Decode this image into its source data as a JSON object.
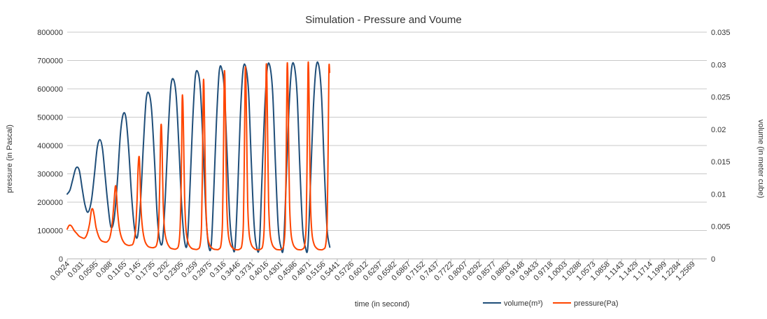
{
  "chart_data": {
    "type": "line",
    "title": "Simulation - Pressure and Voume",
    "xlabel": "time (in second)",
    "ylabel_left": "pressure (in Pascal)",
    "ylabel_right": "volume (in meter cube)",
    "x_range": [
      0.0024,
      1.2854
    ],
    "x_ticks": [
      "0.0024",
      "0.031",
      "0.0595",
      "0.088",
      "0.1165",
      "0.145",
      "0.1735",
      "0.202",
      "0.2305",
      "0.259",
      "0.2875",
      "0.316",
      "0.3446",
      "0.3731",
      "0.4016",
      "0.4301",
      "0.4586",
      "0.4871",
      "0.5156",
      "0.5441",
      "0.5726",
      "0.6012",
      "0.6297",
      "0.6582",
      "0.6867",
      "0.7152",
      "0.7437",
      "0.7722",
      "0.8007",
      "0.8292",
      "0.8577",
      "0.8863",
      "0.9148",
      "0.9433",
      "0.9718",
      "1.0003",
      "1.0288",
      "1.0573",
      "1.0858",
      "1.1143",
      "1.1429",
      "1.1714",
      "1.1999",
      "1.2284",
      "1.2569"
    ],
    "y_left": {
      "min": 0,
      "max": 800000,
      "step": 100000,
      "ticks": [
        "0",
        "100000",
        "200000",
        "300000",
        "400000",
        "500000",
        "600000",
        "700000",
        "800000"
      ]
    },
    "y_right": {
      "min": 0,
      "max": 0.035,
      "step": 0.005,
      "ticks": [
        "0",
        "0.005",
        "0.01",
        "0.015",
        "0.02",
        "0.025",
        "0.03",
        "0.035"
      ]
    },
    "grid": true,
    "legend_position": "bottom-right",
    "series": [
      {
        "name": "volume(m³)",
        "axis": "right",
        "color": "#1f4e79",
        "points": [
          [
            0.0024,
            0.01
          ],
          [
            0.0079,
            0.0106
          ],
          [
            0.0131,
            0.0121
          ],
          [
            0.0199,
            0.014
          ],
          [
            0.0265,
            0.0137
          ],
          [
            0.0326,
            0.0108
          ],
          [
            0.0382,
            0.0083
          ],
          [
            0.0442,
            0.0072
          ],
          [
            0.051,
            0.009
          ],
          [
            0.057,
            0.013
          ],
          [
            0.0627,
            0.0172
          ],
          [
            0.0682,
            0.0184
          ],
          [
            0.0732,
            0.017
          ],
          [
            0.0782,
            0.0131
          ],
          [
            0.0838,
            0.0086
          ],
          [
            0.0902,
            0.0049
          ],
          [
            0.0968,
            0.0063
          ],
          [
            0.1031,
            0.012
          ],
          [
            0.1091,
            0.0192
          ],
          [
            0.1146,
            0.0223
          ],
          [
            0.1202,
            0.0218
          ],
          [
            0.1257,
            0.017
          ],
          [
            0.1317,
            0.0096
          ],
          [
            0.1377,
            0.0045
          ],
          [
            0.1437,
            0.0035
          ],
          [
            0.1497,
            0.009
          ],
          [
            0.1552,
            0.0175
          ],
          [
            0.1607,
            0.0245
          ],
          [
            0.1662,
            0.0256
          ],
          [
            0.1717,
            0.023
          ],
          [
            0.1777,
            0.015
          ],
          [
            0.1827,
            0.007
          ],
          [
            0.1877,
            0.003
          ],
          [
            0.1937,
            0.0027
          ],
          [
            0.1992,
            0.0095
          ],
          [
            0.2047,
            0.019
          ],
          [
            0.2102,
            0.0265
          ],
          [
            0.2157,
            0.0277
          ],
          [
            0.2212,
            0.025
          ],
          [
            0.2267,
            0.017
          ],
          [
            0.2322,
            0.008
          ],
          [
            0.2377,
            0.0028
          ],
          [
            0.2432,
            0.0024
          ],
          [
            0.2482,
            0.01
          ],
          [
            0.2537,
            0.0205
          ],
          [
            0.2592,
            0.028
          ],
          [
            0.2647,
            0.0288
          ],
          [
            0.2697,
            0.026
          ],
          [
            0.2752,
            0.017
          ],
          [
            0.2807,
            0.007
          ],
          [
            0.2857,
            0.0022
          ],
          [
            0.2912,
            0.002
          ],
          [
            0.2962,
            0.01
          ],
          [
            0.3017,
            0.021
          ],
          [
            0.3072,
            0.0288
          ],
          [
            0.3122,
            0.0294
          ],
          [
            0.3177,
            0.026
          ],
          [
            0.3232,
            0.016
          ],
          [
            0.3287,
            0.006
          ],
          [
            0.3342,
            0.002
          ],
          [
            0.3392,
            0.0019
          ],
          [
            0.3447,
            0.011
          ],
          [
            0.3497,
            0.022
          ],
          [
            0.3552,
            0.0292
          ],
          [
            0.3607,
            0.0296
          ],
          [
            0.3662,
            0.0258
          ],
          [
            0.3717,
            0.015
          ],
          [
            0.3772,
            0.0055
          ],
          [
            0.3822,
            0.0019
          ],
          [
            0.3877,
            0.0019
          ],
          [
            0.3927,
            0.0115
          ],
          [
            0.3982,
            0.0225
          ],
          [
            0.4037,
            0.0294
          ],
          [
            0.4092,
            0.0297
          ],
          [
            0.4147,
            0.0255
          ],
          [
            0.4202,
            0.0145
          ],
          [
            0.4257,
            0.005
          ],
          [
            0.4312,
            0.0018
          ],
          [
            0.4362,
            0.0019
          ],
          [
            0.4417,
            0.012
          ],
          [
            0.4472,
            0.023
          ],
          [
            0.4527,
            0.0295
          ],
          [
            0.4582,
            0.0297
          ],
          [
            0.4637,
            0.0252
          ],
          [
            0.4692,
            0.014
          ],
          [
            0.4747,
            0.0047
          ],
          [
            0.4802,
            0.0018
          ],
          [
            0.4852,
            0.0019
          ],
          [
            0.4907,
            0.0122
          ],
          [
            0.4962,
            0.0233
          ],
          [
            0.5017,
            0.0296
          ],
          [
            0.5072,
            0.0298
          ],
          [
            0.5127,
            0.025
          ],
          [
            0.5182,
            0.0138
          ],
          [
            0.5237,
            0.0046
          ],
          [
            0.5292,
            0.0018
          ]
        ]
      },
      {
        "name": "pressure(Pa)",
        "axis": "left",
        "color": "#ff4500",
        "points": [
          [
            0.0024,
            105000
          ],
          [
            0.0064,
            118000
          ],
          [
            0.0109,
            116000
          ],
          [
            0.0164,
            100000
          ],
          [
            0.0214,
            90000
          ],
          [
            0.0264,
            80000
          ],
          [
            0.0319,
            75000
          ],
          [
            0.0374,
            73000
          ],
          [
            0.0424,
            88000
          ],
          [
            0.0474,
            125000
          ],
          [
            0.0509,
            170000
          ],
          [
            0.0539,
            175000
          ],
          [
            0.0569,
            150000
          ],
          [
            0.0604,
            110000
          ],
          [
            0.0654,
            80000
          ],
          [
            0.0704,
            65000
          ],
          [
            0.0764,
            60000
          ],
          [
            0.0824,
            60000
          ],
          [
            0.0879,
            75000
          ],
          [
            0.0924,
            120000
          ],
          [
            0.0959,
            190000
          ],
          [
            0.0989,
            255000
          ],
          [
            0.1009,
            240000
          ],
          [
            0.1034,
            170000
          ],
          [
            0.1069,
            110000
          ],
          [
            0.1114,
            75000
          ],
          [
            0.1174,
            55000
          ],
          [
            0.1239,
            48000
          ],
          [
            0.1294,
            48000
          ],
          [
            0.1349,
            55000
          ],
          [
            0.1394,
            100000
          ],
          [
            0.1424,
            200000
          ],
          [
            0.1449,
            330000
          ],
          [
            0.1469,
            360000
          ],
          [
            0.1484,
            300000
          ],
          [
            0.1504,
            180000
          ],
          [
            0.1534,
            110000
          ],
          [
            0.1579,
            65000
          ],
          [
            0.1639,
            45000
          ],
          [
            0.1704,
            40000
          ],
          [
            0.1764,
            40000
          ],
          [
            0.1819,
            50000
          ],
          [
            0.1854,
            100000
          ],
          [
            0.1879,
            250000
          ],
          [
            0.1899,
            440000
          ],
          [
            0.1914,
            470000
          ],
          [
            0.1929,
            380000
          ],
          [
            0.1949,
            200000
          ],
          [
            0.1979,
            100000
          ],
          [
            0.2024,
            60000
          ],
          [
            0.2084,
            40000
          ],
          [
            0.2149,
            35000
          ],
          [
            0.2209,
            35000
          ],
          [
            0.2259,
            48000
          ],
          [
            0.2289,
            110000
          ],
          [
            0.2314,
            300000
          ],
          [
            0.2329,
            550000
          ],
          [
            0.2344,
            560000
          ],
          [
            0.2359,
            430000
          ],
          [
            0.2379,
            220000
          ],
          [
            0.2409,
            100000
          ],
          [
            0.2454,
            55000
          ],
          [
            0.2514,
            38000
          ],
          [
            0.2579,
            34000
          ],
          [
            0.2639,
            34000
          ],
          [
            0.2689,
            48000
          ],
          [
            0.2719,
            120000
          ],
          [
            0.2739,
            350000
          ],
          [
            0.2754,
            610000
          ],
          [
            0.2769,
            600000
          ],
          [
            0.2784,
            420000
          ],
          [
            0.2804,
            200000
          ],
          [
            0.2834,
            90000
          ],
          [
            0.2879,
            50000
          ],
          [
            0.2944,
            36000
          ],
          [
            0.3009,
            33000
          ],
          [
            0.3064,
            34000
          ],
          [
            0.3109,
            50000
          ],
          [
            0.3139,
            130000
          ],
          [
            0.3159,
            380000
          ],
          [
            0.3174,
            640000
          ],
          [
            0.3189,
            630000
          ],
          [
            0.3204,
            440000
          ],
          [
            0.3224,
            200000
          ],
          [
            0.3254,
            90000
          ],
          [
            0.3299,
            50000
          ],
          [
            0.3364,
            35000
          ],
          [
            0.3429,
            32000
          ],
          [
            0.3484,
            34000
          ],
          [
            0.3529,
            50000
          ],
          [
            0.3559,
            130000
          ],
          [
            0.3579,
            390000
          ],
          [
            0.3594,
            655000
          ],
          [
            0.3609,
            640000
          ],
          [
            0.3624,
            450000
          ],
          [
            0.3644,
            200000
          ],
          [
            0.3674,
            90000
          ],
          [
            0.3719,
            50000
          ],
          [
            0.3784,
            35000
          ],
          [
            0.3849,
            32000
          ],
          [
            0.3904,
            34000
          ],
          [
            0.3949,
            50000
          ],
          [
            0.3979,
            130000
          ],
          [
            0.3999,
            395000
          ],
          [
            0.4014,
            665000
          ],
          [
            0.4029,
            650000
          ],
          [
            0.4044,
            450000
          ],
          [
            0.4064,
            200000
          ],
          [
            0.4094,
            90000
          ],
          [
            0.4139,
            50000
          ],
          [
            0.4204,
            35000
          ],
          [
            0.4269,
            32000
          ],
          [
            0.4324,
            34000
          ],
          [
            0.4369,
            50000
          ],
          [
            0.4399,
            130000
          ],
          [
            0.4419,
            400000
          ],
          [
            0.4434,
            668000
          ],
          [
            0.4449,
            655000
          ],
          [
            0.4464,
            455000
          ],
          [
            0.4484,
            200000
          ],
          [
            0.4514,
            90000
          ],
          [
            0.4559,
            50000
          ],
          [
            0.4624,
            35000
          ],
          [
            0.4689,
            32000
          ],
          [
            0.4744,
            34000
          ],
          [
            0.4789,
            50000
          ],
          [
            0.4819,
            130000
          ],
          [
            0.4839,
            400000
          ],
          [
            0.4854,
            670000
          ],
          [
            0.4869,
            658000
          ],
          [
            0.4884,
            455000
          ],
          [
            0.4904,
            200000
          ],
          [
            0.4934,
            90000
          ],
          [
            0.4979,
            50000
          ],
          [
            0.5044,
            35000
          ],
          [
            0.5109,
            32000
          ],
          [
            0.5164,
            34000
          ],
          [
            0.5209,
            50000
          ],
          [
            0.5239,
            130000
          ],
          [
            0.5259,
            400000
          ],
          [
            0.5274,
            670000
          ],
          [
            0.5289,
            658000
          ]
        ]
      }
    ]
  }
}
